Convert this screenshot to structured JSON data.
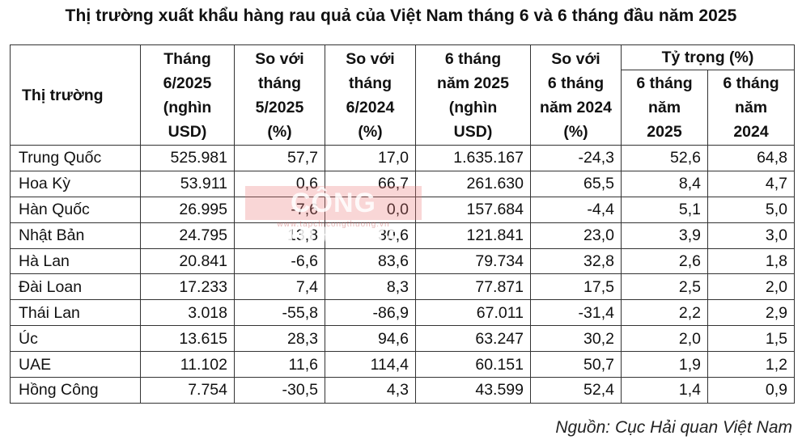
{
  "title": "Thị trường xuất khẩu hàng rau quả của Việt Nam tháng 6 và 6 tháng đầu năm 2025",
  "table": {
    "headers": {
      "market": "Thị trường",
      "june_2025": [
        "Tháng",
        "6/2025",
        "(nghìn",
        "USD)"
      ],
      "vs_may_2025": [
        "So với",
        "tháng",
        "5/2025",
        "(%)"
      ],
      "vs_june_2024": [
        "So với",
        "tháng",
        "6/2024",
        "(%)"
      ],
      "h1_2025": [
        "6 tháng",
        "năm 2025",
        "(nghìn",
        "USD)"
      ],
      "vs_h1_2024": [
        "So với",
        "6 tháng",
        "năm 2024",
        "(%)"
      ],
      "share": "Tỷ trọng (%)",
      "share_2025": [
        "6 tháng",
        "năm",
        "2025"
      ],
      "share_2024": [
        "6 tháng",
        "năm",
        "2024"
      ]
    },
    "rows": [
      [
        "Trung Quốc",
        "525.981",
        "57,7",
        "17,0",
        "1.635.167",
        "-24,3",
        "52,6",
        "64,8"
      ],
      [
        "Hoa Kỳ",
        "53.911",
        "0,6",
        "66,7",
        "261.630",
        "65,5",
        "8,4",
        "4,7"
      ],
      [
        "Hàn Quốc",
        "26.995",
        "-7,6",
        "0,0",
        "157.684",
        "-4,4",
        "5,1",
        "5,0"
      ],
      [
        "Nhật Bản",
        "24.795",
        "13,8",
        "30,6",
        "121.841",
        "23,0",
        "3,9",
        "3,0"
      ],
      [
        "Hà Lan",
        "20.841",
        "-6,6",
        "83,6",
        "79.734",
        "32,8",
        "2,6",
        "1,8"
      ],
      [
        "Đài Loan",
        "17.233",
        "7,4",
        "8,3",
        "77.871",
        "17,5",
        "2,5",
        "2,0"
      ],
      [
        "Thái Lan",
        "3.018",
        "-55,8",
        "-86,9",
        "67.011",
        "-31,4",
        "2,2",
        "2,9"
      ],
      [
        "Úc",
        "13.615",
        "28,3",
        "94,6",
        "63.247",
        "30,2",
        "2,0",
        "1,5"
      ],
      [
        "UAE",
        "11.102",
        "11,6",
        "114,4",
        "60.151",
        "50,7",
        "1,9",
        "1,2"
      ],
      [
        "Hồng Công",
        "7.754",
        "-30,5",
        "4,3",
        "43.599",
        "52,4",
        "1,4",
        "0,9"
      ]
    ]
  },
  "watermark": {
    "logo": "CÔNG THƯƠNG",
    "url": "www.tapchicongthuong.vn"
  },
  "source": "Nguồn: Cục Hải quan Việt Nam"
}
